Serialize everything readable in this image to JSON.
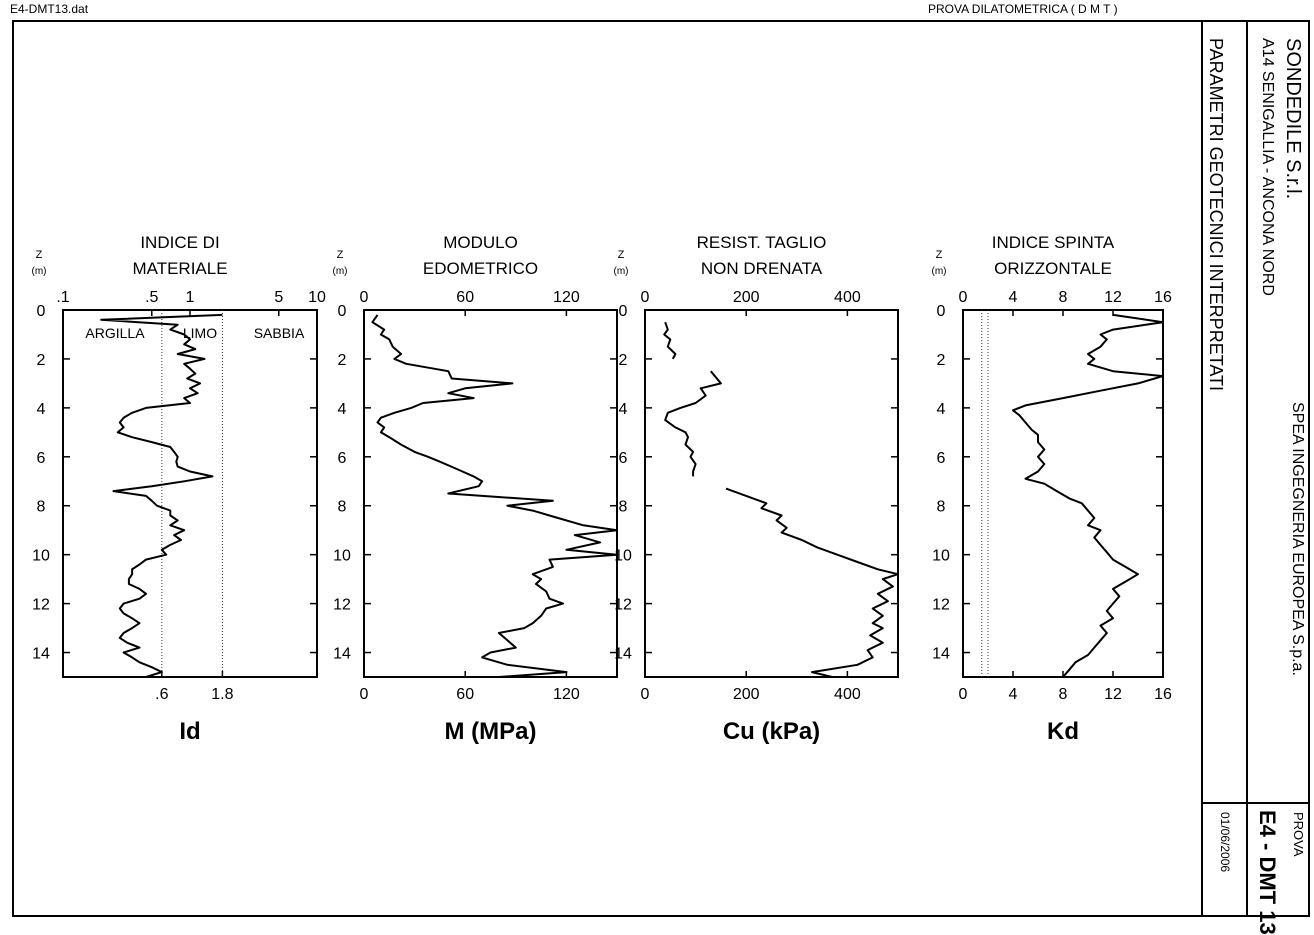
{
  "header": {
    "file_name": "E4-DMT13.dat",
    "test_type": "PROVA DILATOMETRICA ( D M T )"
  },
  "sidebar": {
    "company": "SONDEDILE S.r.l.",
    "project": "A14 SENIGALLIA - ANCONA NORD",
    "client": "SPEA INGEGNERIA EUROPEA S.p.a.",
    "section_title": "PARAMETRI GEOTECNICI INTERPRETATI",
    "prova_label": "PROVA",
    "prova_id": "E4 - DMT 13",
    "date": "01/06/2006"
  },
  "depth_axis": {
    "label_z": "Z",
    "label_unit": "(m)",
    "ticks": [
      0,
      2,
      4,
      6,
      8,
      10,
      12,
      14
    ],
    "range": [
      0,
      15
    ]
  },
  "chart_data": [
    {
      "type": "line",
      "title_line1": "INDICE DI",
      "title_line2": "MATERIALE",
      "xlabel": "Id",
      "xscale": "log",
      "xlim": [
        0.1,
        10
      ],
      "top_ticks": [
        ".1",
        ".5",
        "1",
        "5",
        "10"
      ],
      "top_tick_values": [
        0.1,
        0.5,
        1,
        5,
        10
      ],
      "bottom_ticks": [
        ".6",
        "1.8"
      ],
      "bottom_tick_values": [
        0.6,
        1.8
      ],
      "ref_lines": [
        0.6,
        1.8
      ],
      "zones": [
        "ARGILLA",
        "LIMO",
        "SABBIA"
      ],
      "y": [
        0.2,
        0.4,
        0.6,
        0.8,
        1.0,
        1.2,
        1.4,
        1.6,
        1.8,
        2.0,
        2.2,
        2.4,
        2.6,
        2.8,
        3.0,
        3.2,
        3.4,
        3.6,
        3.8,
        4.0,
        4.2,
        4.4,
        4.6,
        4.8,
        5.0,
        5.2,
        5.4,
        5.6,
        5.8,
        6.0,
        6.2,
        6.4,
        6.6,
        6.8,
        7.0,
        7.2,
        7.4,
        7.6,
        7.8,
        8.0,
        8.2,
        8.4,
        8.6,
        8.8,
        9.0,
        9.2,
        9.4,
        9.6,
        9.8,
        10.0,
        10.2,
        10.4,
        10.6,
        10.8,
        11.0,
        11.2,
        11.4,
        11.6,
        11.8,
        12.0,
        12.2,
        12.4,
        12.6,
        12.8,
        13.0,
        13.2,
        13.4,
        13.6,
        13.8,
        14.0,
        14.2,
        14.4,
        14.6,
        14.8,
        15.0
      ],
      "x": [
        1.8,
        0.2,
        0.8,
        0.7,
        0.9,
        1.0,
        0.9,
        1.1,
        0.8,
        1.3,
        0.9,
        1.0,
        1.1,
        0.95,
        1.2,
        1.0,
        1.15,
        0.9,
        1.0,
        0.45,
        0.35,
        0.3,
        0.28,
        0.3,
        0.27,
        0.35,
        0.5,
        0.7,
        0.75,
        0.8,
        0.78,
        0.8,
        1.0,
        1.5,
        0.9,
        0.5,
        0.25,
        0.45,
        0.5,
        0.55,
        0.7,
        0.7,
        0.8,
        0.7,
        0.9,
        0.75,
        0.85,
        0.7,
        0.6,
        0.65,
        0.45,
        0.4,
        0.35,
        0.35,
        0.33,
        0.33,
        0.4,
        0.45,
        0.4,
        0.3,
        0.28,
        0.3,
        0.35,
        0.4,
        0.35,
        0.3,
        0.28,
        0.32,
        0.4,
        0.3,
        0.35,
        0.4,
        0.5,
        0.6,
        0.45
      ]
    },
    {
      "type": "line",
      "title_line1": "MODULO",
      "title_line2": "EDOMETRICO",
      "xlabel": "M (MPa)",
      "xlim": [
        0,
        150
      ],
      "top_ticks": [
        "0",
        "60",
        "120"
      ],
      "top_tick_values": [
        0,
        60,
        120
      ],
      "bottom_ticks": [
        "0",
        "60",
        "120"
      ],
      "bottom_tick_values": [
        0,
        60,
        120
      ],
      "y": [
        0.2,
        0.5,
        0.8,
        1.0,
        1.2,
        1.5,
        1.8,
        2.0,
        2.2,
        2.5,
        2.8,
        3.0,
        3.2,
        3.4,
        3.6,
        3.8,
        4.0,
        4.2,
        4.4,
        4.6,
        4.8,
        5.0,
        5.2,
        5.5,
        5.8,
        6.0,
        6.2,
        6.5,
        6.8,
        7.0,
        7.2,
        7.5,
        7.8,
        8.0,
        8.2,
        8.5,
        8.8,
        9.0,
        9.2,
        9.5,
        9.8,
        10.0,
        10.2,
        10.5,
        10.8,
        11.0,
        11.2,
        11.5,
        11.8,
        12.0,
        12.2,
        12.5,
        12.8,
        13.0,
        13.2,
        13.5,
        13.8,
        14.0,
        14.2,
        14.5,
        14.8,
        15.0
      ],
      "x": [
        8,
        5,
        12,
        10,
        15,
        17,
        22,
        18,
        25,
        50,
        52,
        88,
        60,
        50,
        65,
        35,
        28,
        18,
        10,
        8,
        12,
        10,
        15,
        22,
        30,
        38,
        45,
        55,
        65,
        70,
        68,
        50,
        112,
        85,
        100,
        115,
        130,
        150,
        125,
        140,
        120,
        150,
        110,
        112,
        100,
        105,
        102,
        108,
        110,
        118,
        108,
        105,
        100,
        95,
        80,
        85,
        90,
        75,
        70,
        85,
        120,
        80
      ]
    },
    {
      "type": "line",
      "title_line1": "RESIST. TAGLIO",
      "title_line2": "NON DRENATA",
      "xlabel": "Cu (kPa)",
      "xlim": [
        0,
        500
      ],
      "top_ticks": [
        "0",
        "200",
        "400"
      ],
      "top_tick_values": [
        0,
        200,
        400
      ],
      "bottom_ticks": [
        "0",
        "200",
        "400"
      ],
      "bottom_tick_values": [
        0,
        200,
        400
      ],
      "segments": [
        {
          "y": [
            0.5,
            0.8,
            1.0,
            1.2,
            1.5,
            1.8,
            2.0
          ],
          "x": [
            40,
            45,
            38,
            50,
            45,
            60,
            55
          ]
        },
        {
          "y": [
            2.5,
            3.0,
            3.2,
            3.5,
            3.8,
            4.0,
            4.2,
            4.5,
            4.8,
            5.0,
            5.2,
            5.5,
            5.8,
            6.0,
            6.3,
            6.6,
            6.8
          ],
          "x": [
            130,
            150,
            110,
            120,
            100,
            70,
            45,
            40,
            60,
            80,
            85,
            80,
            95,
            90,
            100,
            95,
            95
          ]
        },
        {
          "y": [
            7.3,
            7.6,
            7.9,
            8.1,
            8.4,
            8.6,
            8.9,
            9.1,
            9.4,
            9.7,
            10.0,
            10.3,
            10.6,
            10.8,
            11.0,
            11.3,
            11.6,
            11.9,
            12.2,
            12.5,
            12.8,
            13.0,
            13.3,
            13.6,
            13.9,
            14.2,
            14.5,
            14.8,
            15.0
          ],
          "x": [
            160,
            200,
            240,
            230,
            270,
            260,
            280,
            270,
            310,
            340,
            380,
            420,
            460,
            500,
            470,
            490,
            460,
            480,
            450,
            470,
            450,
            470,
            445,
            470,
            440,
            450,
            420,
            330,
            370
          ]
        }
      ]
    },
    {
      "type": "line",
      "title_line1": "INDICE SPINTA",
      "title_line2": "ORIZZONTALE",
      "xlabel": "Kd",
      "xlim": [
        0,
        16
      ],
      "top_ticks": [
        "0",
        "4",
        "8",
        "12",
        "16"
      ],
      "top_tick_values": [
        0,
        4,
        8,
        12,
        16
      ],
      "bottom_ticks": [
        "0",
        "4",
        "8",
        "12",
        "16"
      ],
      "bottom_tick_values": [
        0,
        4,
        8,
        12,
        16
      ],
      "ref_lines": [
        1.5,
        2.0
      ],
      "y": [
        0.2,
        0.5,
        0.8,
        1.0,
        1.2,
        1.5,
        1.8,
        2.0,
        2.2,
        2.5,
        2.7,
        3.0,
        3.3,
        3.6,
        3.9,
        4.1,
        4.3,
        4.6,
        4.9,
        5.1,
        5.4,
        5.7,
        6.0,
        6.3,
        6.6,
        6.9,
        7.1,
        7.4,
        7.7,
        7.9,
        8.2,
        8.5,
        8.8,
        9.0,
        9.3,
        9.6,
        9.9,
        10.2,
        10.5,
        10.8,
        11.1,
        11.4,
        11.7,
        12.0,
        12.3,
        12.6,
        12.9,
        13.2,
        13.5,
        13.8,
        14.1,
        14.4,
        14.7,
        15.0
      ],
      "x": [
        12,
        16,
        12,
        11,
        11.5,
        11,
        10,
        10.5,
        10,
        12,
        16,
        14,
        11,
        8,
        5,
        4,
        4.5,
        5,
        5.5,
        6,
        6,
        6.5,
        6,
        6.5,
        6,
        5,
        6.5,
        7.5,
        8.5,
        9.5,
        10,
        10.5,
        10,
        11,
        10.5,
        11,
        11.5,
        12,
        13,
        14,
        13,
        12,
        12.5,
        12,
        11.5,
        12,
        11,
        11.5,
        11,
        10.5,
        10,
        9,
        8.5,
        8
      ]
    }
  ]
}
